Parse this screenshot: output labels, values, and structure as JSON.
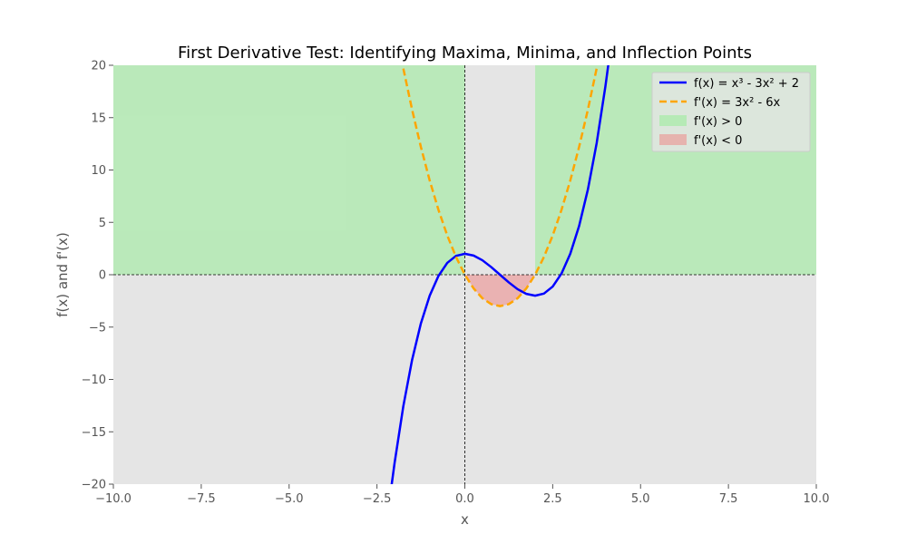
{
  "chart_data": {
    "type": "line",
    "title": "First Derivative Test: Identifying Maxima, Minima, and Inflection Points",
    "xlabel": "x",
    "ylabel": "f(x) and f'(x)",
    "xlim": [
      -10,
      10
    ],
    "ylim": [
      -20,
      20
    ],
    "x_ticks": [
      -10,
      -7.5,
      -5,
      -2.5,
      0,
      2.5,
      5,
      7.5,
      10
    ],
    "x_tick_labels": [
      "−10.0",
      "−7.5",
      "−5.0",
      "−2.5",
      "0.0",
      "2.5",
      "5.0",
      "7.5",
      "10.0"
    ],
    "y_ticks": [
      -20,
      -15,
      -10,
      -5,
      0,
      5,
      10,
      15,
      20
    ],
    "y_tick_labels": [
      "−20",
      "−15",
      "−10",
      "−5",
      "0",
      "5",
      "10",
      "15",
      "20"
    ],
    "grid": false,
    "legend_position": "top-right",
    "series": [
      {
        "name": "f(x) = x³ - 3x² + 2",
        "color": "#0000ff",
        "style": "solid",
        "x": [
          -2.1,
          -2.0,
          -1.75,
          -1.5,
          -1.25,
          -1.0,
          -0.75,
          -0.5,
          -0.25,
          0.0,
          0.25,
          0.5,
          0.75,
          1.0,
          1.25,
          1.5,
          1.75,
          2.0,
          2.25,
          2.5,
          2.75,
          3.0,
          3.25,
          3.5,
          3.75,
          4.0,
          4.1
        ],
        "y": [
          -20.49,
          -18.0,
          -12.55,
          -8.12,
          -4.64,
          -2.0,
          -0.11,
          1.13,
          1.8,
          2.0,
          1.83,
          1.38,
          0.73,
          0.0,
          -0.73,
          -1.38,
          -1.83,
          -2.0,
          -1.8,
          -1.13,
          0.11,
          2.0,
          4.64,
          8.12,
          12.55,
          18.0,
          20.49
        ]
      },
      {
        "name": "f'(x) = 3x² - 6x",
        "color": "#ffa500",
        "style": "dashed",
        "x": [
          -1.75,
          -1.5,
          -1.25,
          -1.0,
          -0.75,
          -0.5,
          -0.25,
          0.0,
          0.25,
          0.5,
          0.75,
          1.0,
          1.25,
          1.5,
          1.75,
          2.0,
          2.25,
          2.5,
          2.75,
          3.0,
          3.25,
          3.5,
          3.75
        ],
        "y": [
          19.69,
          15.75,
          12.19,
          9.0,
          6.19,
          3.75,
          1.69,
          0.0,
          -1.31,
          -2.25,
          -2.81,
          -3.0,
          -2.81,
          -2.25,
          -1.31,
          0.0,
          1.69,
          3.75,
          6.19,
          9.0,
          12.19,
          15.75,
          19.69
        ]
      }
    ],
    "regions": [
      {
        "name": "f'(x) > 0",
        "color": "#90ee90",
        "opacity": 0.5,
        "x_ranges": [
          [
            -10,
            0
          ],
          [
            2,
            10
          ]
        ],
        "y_range": [
          0,
          20
        ]
      },
      {
        "name": "f'(x) < 0",
        "color": "#f08080",
        "opacity": 0.5,
        "x_range": [
          0,
          2
        ],
        "bounded_by": "f'(x) = 3x² - 6x"
      }
    ],
    "reference_lines": [
      {
        "orientation": "horizontal",
        "value": 0,
        "style": "dashed",
        "color": "#000000"
      },
      {
        "orientation": "vertical",
        "value": 0,
        "style": "dashed",
        "color": "#000000"
      }
    ],
    "axes_background": "#e5e5e5"
  }
}
